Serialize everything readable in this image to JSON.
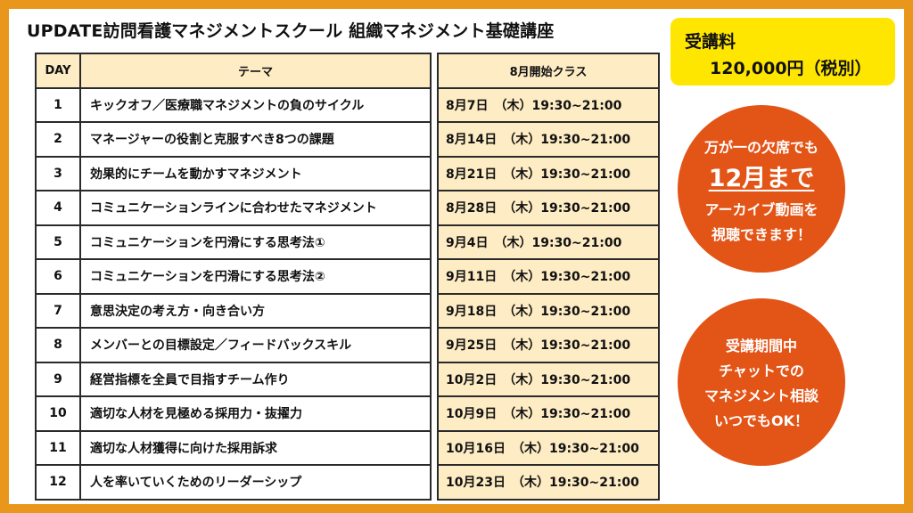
{
  "title": "UPDATE訪問看護マネジメントスクール  組織マネジメント基礎講座",
  "fee": {
    "label": "受講料",
    "value": "120,000円（税別）"
  },
  "table": {
    "headers": {
      "day": "DAY",
      "theme": "テーマ",
      "date": "8月開始クラス"
    },
    "rows": [
      {
        "day": "1",
        "theme": "キックオフ／医療職マネジメントの負のサイクル",
        "date": "8月7日　（木）19:30~21:00"
      },
      {
        "day": "2",
        "theme": "マネージャーの役割と克服すべき8つの課題",
        "date": "8月14日　（木）19:30~21:00"
      },
      {
        "day": "3",
        "theme": "効果的にチームを動かすマネジメント",
        "date": "8月21日　（木）19:30~21:00"
      },
      {
        "day": "4",
        "theme": "コミュニケーションラインに合わせたマネジメント",
        "date": "8月28日　（木）19:30~21:00"
      },
      {
        "day": "5",
        "theme": "コミュニケーションを円滑にする思考法①",
        "date": "9月4日　（木）19:30~21:00"
      },
      {
        "day": "6",
        "theme": "コミュニケーションを円滑にする思考法②",
        "date": "9月11日　（木）19:30~21:00"
      },
      {
        "day": "7",
        "theme": "意思決定の考え方・向き合い方",
        "date": "9月18日　（木）19:30~21:00"
      },
      {
        "day": "8",
        "theme": "メンバーとの目標設定／フィードバックスキル",
        "date": "9月25日　（木）19:30~21:00"
      },
      {
        "day": "9",
        "theme": "経営指標を全員で目指すチーム作り",
        "date": "10月2日　（木）19:30~21:00"
      },
      {
        "day": "10",
        "theme": "適切な人材を見極める採用力・抜擢力",
        "date": "10月9日　（木）19:30~21:00"
      },
      {
        "day": "11",
        "theme": "適切な人材獲得に向けた採用訴求",
        "date": "10月16日　（木）19:30~21:00"
      },
      {
        "day": "12",
        "theme": "人を率いていくためのリーダーシップ",
        "date": "10月23日　（木）19:30~21:00"
      }
    ]
  },
  "circle1": {
    "line1": "万が一の欠席でも",
    "line2": "12月まで",
    "line3": "アーカイブ動画を",
    "line4": "視聴できます！"
  },
  "circle2": {
    "lines": [
      "受講期間中",
      "チャットでの",
      "マネジメント相談",
      "いつでもOK！"
    ]
  },
  "colors": {
    "frame": "#e8961c",
    "fee_bg": "#ffe600",
    "circle_bg": "#e35417",
    "cell_bg": "#fdecc4"
  }
}
